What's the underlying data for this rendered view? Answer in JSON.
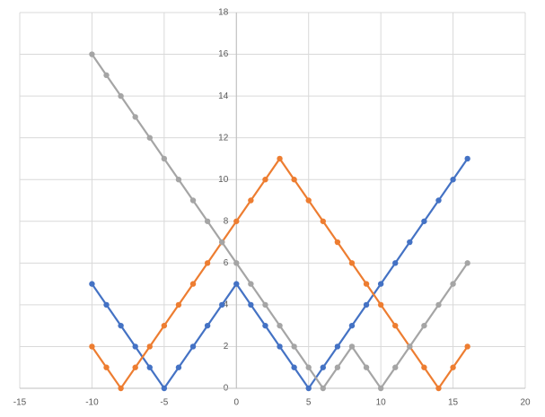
{
  "chart_data": {
    "type": "scatter-line",
    "x": [
      -10,
      -9,
      -8,
      -7,
      -6,
      -5,
      -4,
      -3,
      -2,
      -1,
      0,
      1,
      2,
      3,
      4,
      5,
      6,
      7,
      8,
      9,
      10,
      11,
      12,
      13,
      14,
      15,
      16
    ],
    "series": [
      {
        "color": "#4472c4",
        "values": [
          5,
          4,
          3,
          2,
          1,
          0,
          1,
          2,
          3,
          4,
          5,
          4,
          3,
          2,
          1,
          0,
          1,
          2,
          3,
          4,
          5,
          6,
          7,
          8,
          9,
          10,
          11
        ]
      },
      {
        "color": "#ed7d31",
        "values": [
          2,
          1,
          0,
          1,
          2,
          3,
          4,
          5,
          6,
          7,
          8,
          9,
          10,
          11,
          10,
          9,
          8,
          7,
          6,
          5,
          4,
          3,
          2,
          1,
          0,
          1,
          2
        ]
      },
      {
        "color": "#a5a5a5",
        "values": [
          16,
          15,
          14,
          13,
          12,
          11,
          10,
          9,
          8,
          7,
          6,
          5,
          4,
          3,
          2,
          1,
          0,
          1,
          2,
          1,
          0,
          1,
          2,
          3,
          4,
          5,
          6
        ]
      }
    ],
    "xlim": [
      -15,
      20
    ],
    "xticks": [
      -15,
      -10,
      -5,
      0,
      5,
      10,
      15,
      20
    ],
    "ylim": [
      0,
      18
    ],
    "yticks": [
      0,
      2,
      4,
      6,
      8,
      10,
      12,
      14,
      16,
      18
    ],
    "grid": true
  }
}
